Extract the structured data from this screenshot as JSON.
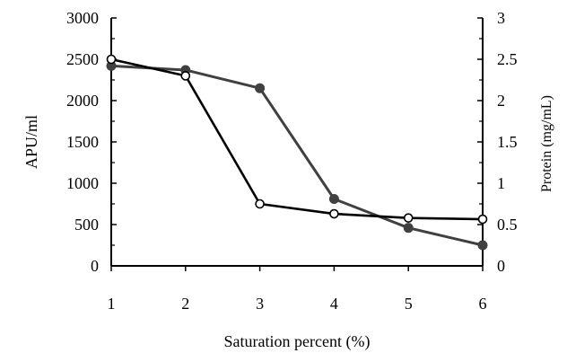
{
  "chart_data": {
    "type": "line",
    "title": "",
    "xlabel": "Saturation percent (%)",
    "ylabel": "APU/ml",
    "y2label": "Protein (mg/mL)",
    "x": [
      1,
      2,
      3,
      4,
      5,
      6
    ],
    "xticks": [
      "1",
      "2",
      "3",
      "4",
      "5",
      "6"
    ],
    "xlim": [
      1,
      6
    ],
    "ylim": [
      0,
      3000
    ],
    "yticks": [
      "0",
      "500",
      "1000",
      "1500",
      "2000",
      "2500",
      "3000"
    ],
    "y2lim": [
      0,
      3
    ],
    "y2ticks": [
      "0",
      "0.5",
      "1",
      "1.5",
      "2",
      "2.5",
      "3"
    ],
    "grid": false,
    "legend": "none",
    "series": [
      {
        "axis": "left",
        "marker": "open-circle",
        "color": "#000000",
        "values": [
          2500,
          2300,
          750,
          630,
          580,
          565
        ]
      },
      {
        "axis": "right",
        "marker": "filled-circle",
        "color": "#404040",
        "values": [
          2.42,
          2.37,
          2.15,
          0.81,
          0.46,
          0.25
        ]
      }
    ]
  }
}
